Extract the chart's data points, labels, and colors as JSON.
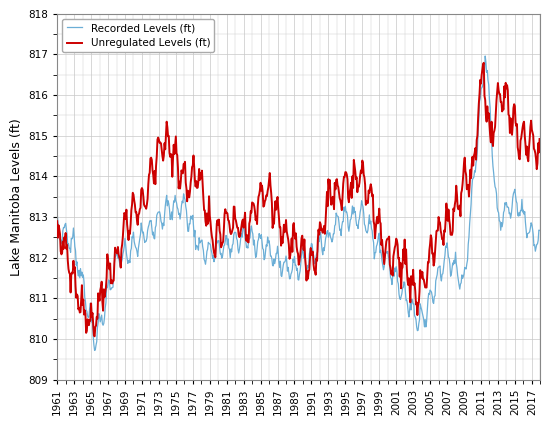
{
  "title": "",
  "ylabel": "Lake Manitoba Levels (ft)",
  "xlabel": "",
  "recorded_color": "#6baed6",
  "unregulated_color": "#cc0000",
  "recorded_label": "Recorded Levels (ft)",
  "unregulated_label": "Unregulated Levels (ft)",
  "ylim": [
    809,
    818
  ],
  "yticks": [
    809,
    810,
    811,
    812,
    813,
    814,
    815,
    816,
    817,
    818
  ],
  "xtick_years": [
    1961,
    1963,
    1965,
    1967,
    1969,
    1971,
    1973,
    1975,
    1977,
    1979,
    1981,
    1983,
    1985,
    1987,
    1989,
    1991,
    1993,
    1995,
    1997,
    1999,
    2001,
    2003,
    2005,
    2007,
    2009,
    2011,
    2013,
    2015,
    2017
  ],
  "recorded_lw": 0.9,
  "unregulated_lw": 1.4,
  "grid_color": "#c8c8c8",
  "background_color": "#ffffff",
  "legend_fontsize": 7.5,
  "axis_fontsize": 9,
  "tick_fontsize": 7.5
}
